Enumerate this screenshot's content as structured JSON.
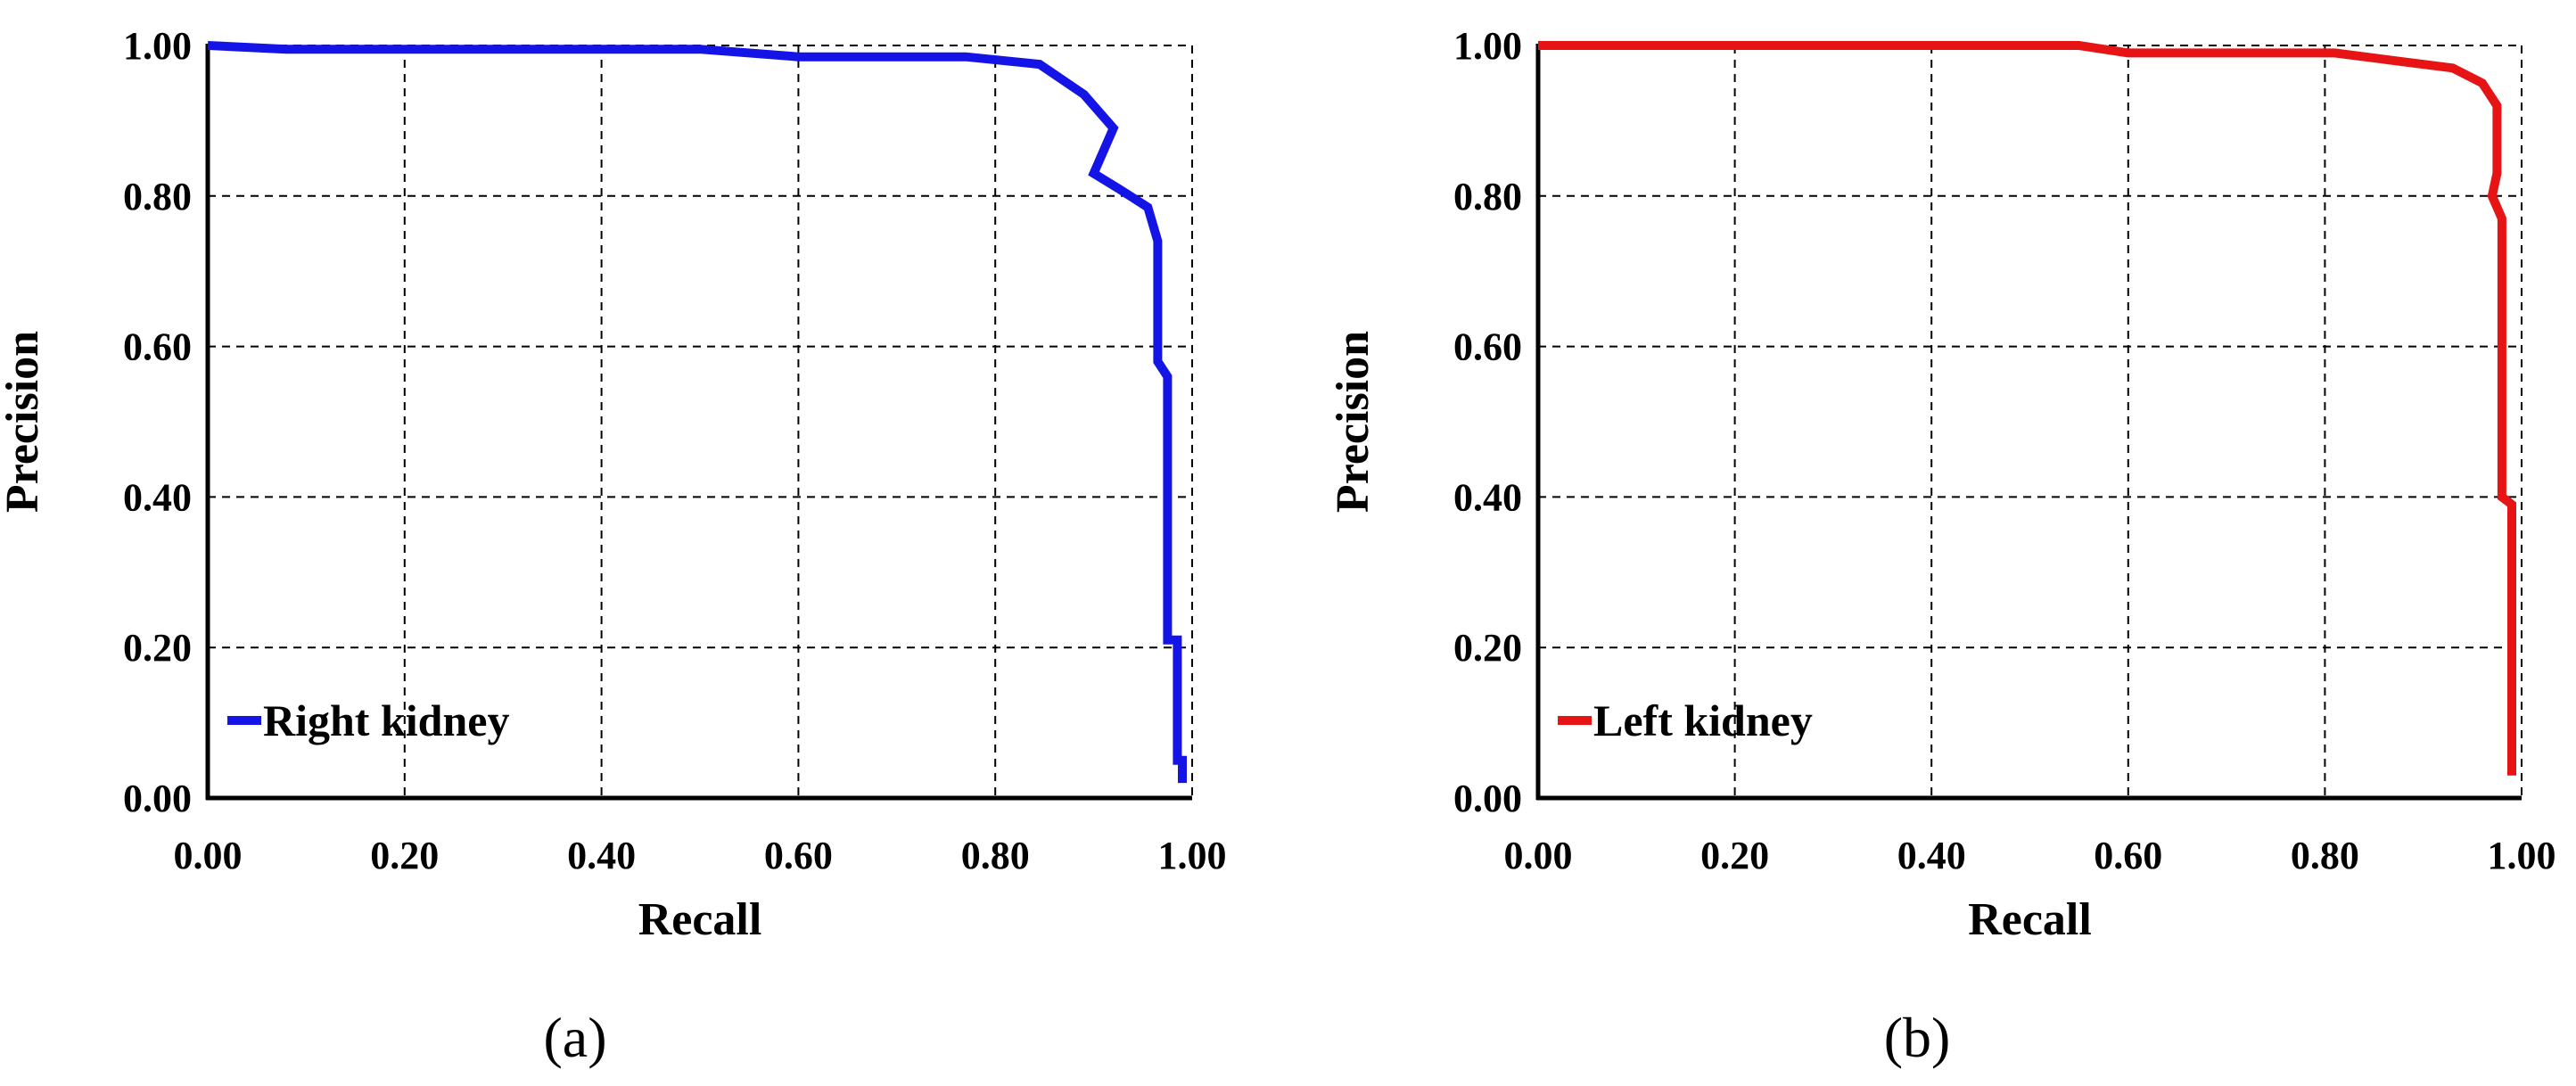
{
  "chart_data": [
    {
      "type": "line",
      "panel_label": "(a)",
      "xlabel": "Recall",
      "ylabel": "Precision",
      "xlim": [
        0,
        1
      ],
      "ylim": [
        0,
        1
      ],
      "xticks": [
        "0.00",
        "0.20",
        "0.40",
        "0.60",
        "0.80",
        "1.00"
      ],
      "yticks": [
        "0.00",
        "0.20",
        "0.40",
        "0.60",
        "0.80",
        "1.00"
      ],
      "grid": true,
      "legend_position": "bottom-left",
      "series": [
        {
          "name": "Right kidney",
          "color": "#1414e6",
          "points": [
            [
              0.0,
              1.0
            ],
            [
              0.08,
              0.995
            ],
            [
              0.5,
              0.995
            ],
            [
              0.6,
              0.985
            ],
            [
              0.77,
              0.985
            ],
            [
              0.845,
              0.975
            ],
            [
              0.89,
              0.935
            ],
            [
              0.92,
              0.89
            ],
            [
              0.9,
              0.83
            ],
            [
              0.925,
              0.81
            ],
            [
              0.955,
              0.785
            ],
            [
              0.965,
              0.74
            ],
            [
              0.965,
              0.58
            ],
            [
              0.975,
              0.56
            ],
            [
              0.975,
              0.21
            ],
            [
              0.985,
              0.21
            ],
            [
              0.985,
              0.05
            ],
            [
              0.99,
              0.05
            ],
            [
              0.99,
              0.02
            ]
          ]
        }
      ]
    },
    {
      "type": "line",
      "panel_label": "(b)",
      "xlabel": "Recall",
      "ylabel": "Precision",
      "xlim": [
        0,
        1
      ],
      "ylim": [
        0,
        1
      ],
      "xticks": [
        "0.00",
        "0.20",
        "0.40",
        "0.60",
        "0.80",
        "1.00"
      ],
      "yticks": [
        "0.00",
        "0.20",
        "0.40",
        "0.60",
        "0.80",
        "1.00"
      ],
      "grid": true,
      "legend_position": "bottom-left",
      "series": [
        {
          "name": "Left kidney",
          "color": "#e61414",
          "points": [
            [
              0.0,
              1.0
            ],
            [
              0.55,
              1.0
            ],
            [
              0.6,
              0.99
            ],
            [
              0.81,
              0.99
            ],
            [
              0.87,
              0.98
            ],
            [
              0.93,
              0.97
            ],
            [
              0.96,
              0.95
            ],
            [
              0.975,
              0.92
            ],
            [
              0.975,
              0.83
            ],
            [
              0.97,
              0.8
            ],
            [
              0.98,
              0.77
            ],
            [
              0.98,
              0.4
            ],
            [
              0.99,
              0.39
            ],
            [
              0.99,
              0.03
            ]
          ]
        }
      ]
    }
  ]
}
